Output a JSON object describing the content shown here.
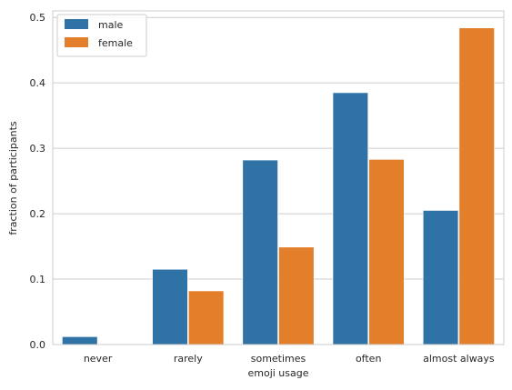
{
  "chart_data": {
    "type": "bar",
    "categories": [
      "never",
      "rarely",
      "sometimes",
      "often",
      "almost always"
    ],
    "series": [
      {
        "name": "male",
        "values": [
          0.012,
          0.115,
          0.282,
          0.385,
          0.205
        ]
      },
      {
        "name": "female",
        "values": [
          0.0,
          0.082,
          0.149,
          0.283,
          0.484
        ]
      }
    ],
    "xlabel": "emoji usage",
    "ylabel": "fraction of participants",
    "ylim": [
      0,
      0.51
    ],
    "yticks": [
      "0.0",
      "0.1",
      "0.2",
      "0.3",
      "0.4",
      "0.5"
    ],
    "ytick_values": [
      0.0,
      0.1,
      0.2,
      0.3,
      0.4,
      0.5
    ],
    "grid": "horizontal",
    "legend_position": "top-left",
    "colors": {
      "male": "#2f73a6",
      "female": "#e37f2b"
    }
  }
}
